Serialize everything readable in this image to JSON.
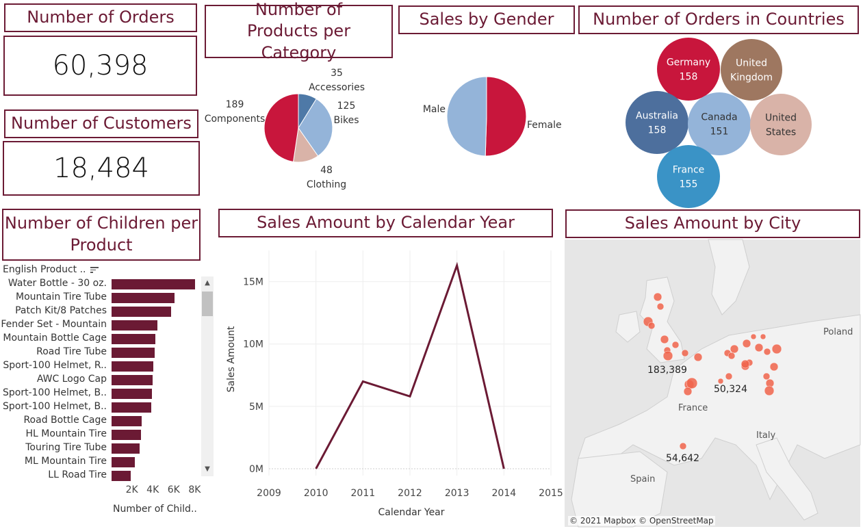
{
  "orders_kpi": {
    "title": "Number of Orders",
    "value": "60,398"
  },
  "customers_kpi": {
    "title": "Number of Customers",
    "value": "18,484"
  },
  "category_pie": {
    "title": "Number of Products per Category",
    "chart_data": {
      "type": "pie",
      "title": "Number of Products per Category",
      "slices": [
        {
          "name": "Accessories",
          "value": 35,
          "color": "#4e79a7"
        },
        {
          "name": "Bikes",
          "value": 125,
          "color": "#94b4d9"
        },
        {
          "name": "Clothing",
          "value": 48,
          "color": "#d9b3a8"
        },
        {
          "name": "Components",
          "value": 189,
          "color": "#c8163c"
        }
      ]
    }
  },
  "gender_pie": {
    "title": "Sales by Gender",
    "chart_data": {
      "type": "pie",
      "title": "Sales by Gender",
      "slices": [
        {
          "name": "Female",
          "value": 50.5,
          "color": "#c8163c"
        },
        {
          "name": "Male",
          "value": 49.5,
          "color": "#94b4d9"
        }
      ]
    }
  },
  "countries_bubble": {
    "title": "Number of Orders in Countries",
    "chart_data": {
      "type": "bubble",
      "title": "Number of Orders in Countries",
      "bubbles": [
        {
          "name": "Germany",
          "value": "158",
          "color": "#c8163c"
        },
        {
          "name": "United Kingdom",
          "value": "",
          "color": "#9e7760"
        },
        {
          "name": "Australia",
          "value": "158",
          "color": "#4d6f9d"
        },
        {
          "name": "Canada",
          "value": "151",
          "color": "#94b4d9"
        },
        {
          "name": "United States",
          "value": "",
          "color": "#d9b3a8"
        },
        {
          "name": "France",
          "value": "155",
          "color": "#3a93c6"
        }
      ]
    }
  },
  "children_bar": {
    "title": "Number of Children per Product",
    "header": "English Product ..",
    "xlabel": "Number of  Child..",
    "chart_data": {
      "type": "bar",
      "orientation": "horizontal",
      "categories": [
        "Water Bottle - 30 oz.",
        "Mountain Tire Tube",
        "Patch Kit/8 Patches",
        "Fender Set - Mountain",
        "Mountain Bottle Cage",
        "Road Tire Tube",
        "Sport-100 Helmet, R..",
        "AWC Logo Cap",
        "Sport-100 Helmet, B..",
        "Sport-100 Helmet, B..",
        "Road Bottle Cage",
        "HL Mountain Tire",
        "Touring Tire Tube",
        "ML Mountain Tire",
        "LL Road Tire"
      ],
      "values": [
        8000,
        6000,
        5700,
        4400,
        4200,
        4100,
        4000,
        3900,
        3850,
        3800,
        2850,
        2800,
        2700,
        2250,
        1800
      ],
      "xticks": [
        "2K",
        "4K",
        "6K",
        "8K"
      ],
      "xlim": [
        0,
        8500
      ]
    }
  },
  "yearly_line": {
    "title": "Sales Amount by Calendar Year",
    "chart_data": {
      "type": "line",
      "title": "Sales Amount by Calendar Year",
      "x": [
        2010,
        2011,
        2012,
        2013,
        2014
      ],
      "values": [
        0,
        7.0,
        5.8,
        16.3,
        0
      ],
      "xlabel": "Calendar Year",
      "ylabel": "Sales Amount",
      "xticks": [
        "2009",
        "2010",
        "2011",
        "2012",
        "2013",
        "2014",
        "2015"
      ],
      "yticks": [
        "0M",
        "5M",
        "10M",
        "15M"
      ],
      "xlim": [
        2009,
        2015
      ],
      "ylim": [
        0,
        17.5
      ],
      "line_color": "#6b1a34"
    }
  },
  "city_map": {
    "title": "Sales Amount by City",
    "attribution": "© 2021 Mapbox © OpenStreetMap",
    "place_labels": [
      "Poland",
      "France",
      "Italy",
      "Spain"
    ],
    "value_labels": [
      "183,389",
      "50,324",
      "54,642"
    ],
    "point_color": "#f0644c"
  }
}
